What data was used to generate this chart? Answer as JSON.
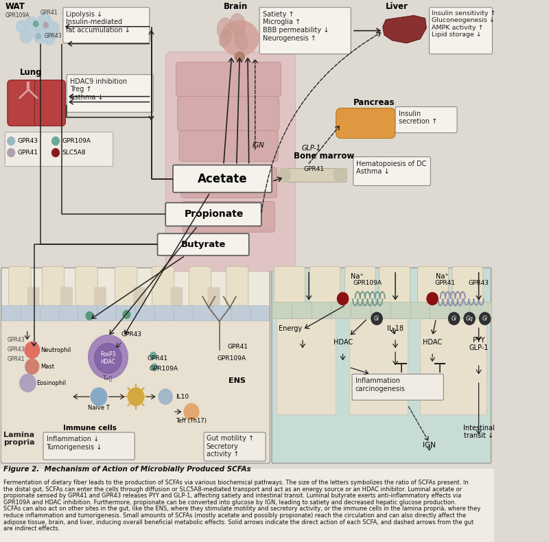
{
  "bg_color": "#dedad2",
  "box_color": "#f5f2ec",
  "box_edge": "#888888",
  "title": "Figure 2.  Mechanism of Action of Microbially Produced SCFAs",
  "caption_lines": [
    "Fermentation of dietary fiber leads to the production of SCFAs via various biochemical pathways. The size of the letters symbolizes the ratio of SCFAs present. In",
    "the distal gut, SCFAs can enter the cells through diffusion or SLC5A8-mediated transport and act as an energy source or an HDAC inhibitor. Luminal acetate or",
    "propionate sensed by GPR41 and GPR43 releases PYY and GLP-1, affecting satiety and intestinal transit. Luminal butyrate exerts anti-inflammatory effects via",
    "GPR109A and HDAC inhibition. Furthermore, propionate can be converted into glucose by IGN, leading to satiety and decreased hepatic glucose production.",
    "SCFAs can also act on other sites in the gut, like the ENS, where they stimulate motility and secretory activity, or the immune cells in the lamina proprià, where they",
    "reduce inflammation and tumorigenesis. Small amounts of SCFAs (mostly acetate and possibly propionate) reach the circulation and can also directly affect the",
    "adipose tissue, brain, and liver, inducing overall beneficial metabolic effects. Solid arrows indicate the direct action of each SCFA, and dashed arrows from the gut",
    "are indirect effects."
  ],
  "wat_circles": [
    [
      52,
      38,
      14,
      "#b8ccd8"
    ],
    [
      72,
      30,
      11,
      "#b8ccd8"
    ],
    [
      84,
      42,
      12,
      "#b8ccd8"
    ],
    [
      65,
      52,
      11,
      "#b8ccd8"
    ],
    [
      42,
      52,
      10,
      "#b8ccd8"
    ],
    [
      80,
      56,
      9,
      "#b8ccd8"
    ],
    [
      35,
      38,
      9,
      "#b8ccd8"
    ]
  ],
  "legend_items": [
    [
      18,
      205,
      "#9ab8c0",
      "GPR43"
    ],
    [
      90,
      205,
      "#6aaa98",
      "GPR109A"
    ],
    [
      18,
      222,
      "#b0a0b0",
      "GPR41"
    ],
    [
      90,
      222,
      "#8b1a1a",
      "SLC5A8"
    ]
  ]
}
